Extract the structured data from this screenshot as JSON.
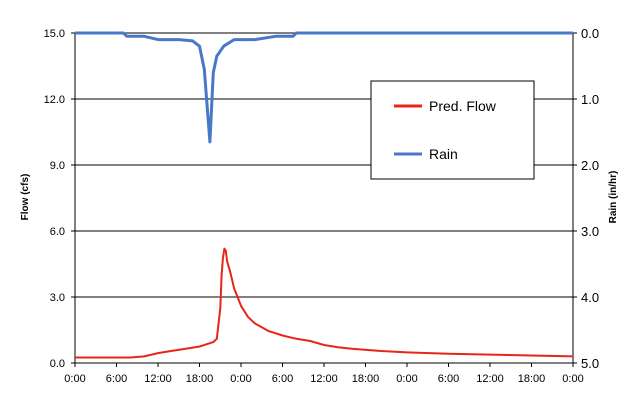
{
  "chart_data": {
    "type": "line",
    "ylabel_left": "Flow (cfs)",
    "ylabel_right": "Rain (in/hr)",
    "x_ticks": [
      "0:00",
      "6:00",
      "12:00",
      "18:00",
      "0:00",
      "6:00",
      "12:00",
      "18:00",
      "0:00",
      "6:00",
      "12:00",
      "18:00",
      "0:00"
    ],
    "y_left_ticks": [
      "0.0",
      "3.0",
      "6.0",
      "9.0",
      "12.0",
      "15.0"
    ],
    "y_left_range": [
      0,
      15
    ],
    "y_right_ticks": [
      "0.0",
      "1.0",
      "2.0",
      "3.0",
      "4.0",
      "5.0"
    ],
    "y_right_range": [
      0,
      5
    ],
    "y_right_inverted": true,
    "x_range_hours": [
      0,
      72
    ],
    "grid": true,
    "legend_position": "right, upper-middle",
    "series": [
      {
        "name": "Pred. Flow",
        "axis": "left",
        "color": "#e8251a",
        "x": [
          0,
          8,
          10,
          12,
          14,
          16,
          18,
          19,
          20,
          20.5,
          21,
          21.2,
          21.4,
          21.6,
          21.8,
          22,
          22.4,
          23,
          24,
          25,
          26,
          28,
          30,
          32,
          34,
          36,
          38,
          40,
          44,
          48,
          54,
          60,
          66,
          72
        ],
        "y": [
          0.25,
          0.25,
          0.3,
          0.45,
          0.55,
          0.65,
          0.75,
          0.85,
          0.95,
          1.1,
          2.5,
          4.0,
          4.8,
          5.2,
          5.1,
          4.6,
          4.2,
          3.4,
          2.6,
          2.1,
          1.8,
          1.45,
          1.25,
          1.1,
          1.0,
          0.82,
          0.72,
          0.65,
          0.55,
          0.48,
          0.42,
          0.38,
          0.34,
          0.3
        ]
      },
      {
        "name": "Rain",
        "axis": "right",
        "color": "#4a78c8",
        "x": [
          0,
          7,
          7.5,
          10,
          12,
          15,
          17,
          18,
          18.7,
          19.5,
          20,
          20.5,
          21.5,
          23,
          26,
          29,
          31.5,
          32,
          72
        ],
        "y": [
          0,
          0,
          0.05,
          0.05,
          0.1,
          0.1,
          0.12,
          0.2,
          0.55,
          1.65,
          0.6,
          0.35,
          0.2,
          0.1,
          0.1,
          0.05,
          0.05,
          0,
          0
        ]
      }
    ]
  }
}
